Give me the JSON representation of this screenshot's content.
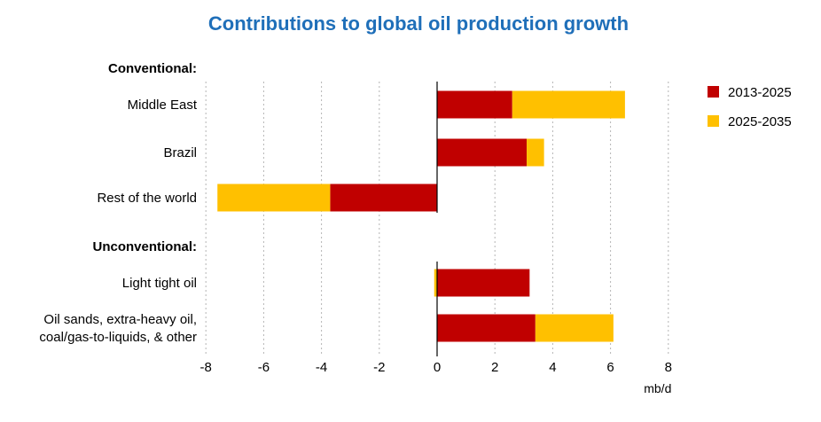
{
  "chart_data": {
    "type": "bar",
    "orientation": "horizontal",
    "stacked": true,
    "title": "Contributions to global oil production growth",
    "xlabel": "mb/d",
    "xlim": [
      -8,
      8
    ],
    "xticks": [
      "-8",
      "-6",
      "-4",
      "-2",
      "0",
      "2",
      "4",
      "6",
      "8"
    ],
    "grid": "vertical dashed",
    "legend_position": "top-right",
    "groups": [
      {
        "label": "Conventional:",
        "categories": [
          "Middle East",
          "Brazil",
          "Rest of the world"
        ],
        "series": [
          {
            "name": "2013-2025",
            "color": "#c00000",
            "values": [
              2.6,
              3.1,
              -3.7
            ]
          },
          {
            "name": "2025-2035",
            "color": "#ffc000",
            "values": [
              3.9,
              0.6,
              -3.9
            ]
          }
        ]
      },
      {
        "label": "Unconventional:",
        "categories": [
          "Light tight oil",
          "Oil sands, extra-heavy oil,\ncoal/gas-to-liquids, & other"
        ],
        "series": [
          {
            "name": "2013-2025",
            "color": "#c00000",
            "values": [
              3.2,
              3.4
            ]
          },
          {
            "name": "2025-2035",
            "color": "#ffc000",
            "values": [
              -0.1,
              2.7
            ]
          }
        ]
      }
    ]
  }
}
